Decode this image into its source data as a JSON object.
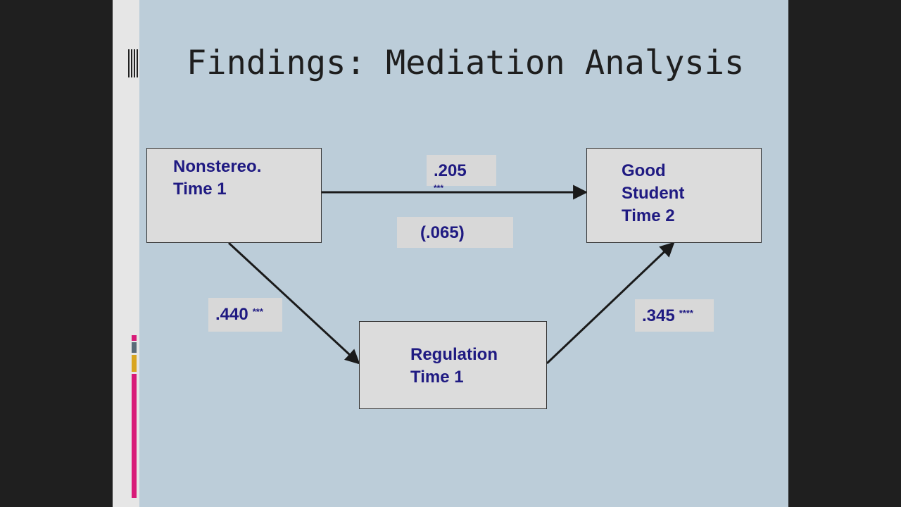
{
  "slide": {
    "title": "Findings: Mediation Analysis"
  },
  "diagram": {
    "nodes": {
      "predictor": {
        "line1": "Nonstereo.",
        "line2": "Time 1"
      },
      "outcome": {
        "line1": "Good",
        "line2": "Student",
        "line3": "Time 2"
      },
      "mediator": {
        "line1": "Regulation",
        "line2": "Time 1"
      }
    },
    "paths": {
      "direct": {
        "value": ".205",
        "sig": "***"
      },
      "direct_controlled": {
        "value": "(.065)"
      },
      "a_path": {
        "value": ".440",
        "sig": "***"
      },
      "b_path": {
        "value": ".345",
        "sig": "****"
      }
    }
  },
  "colors": {
    "slide_bg": "#bccdd9",
    "text_accent": "#1f1a82",
    "box_fill": "#dcdcdc",
    "accent_bars": [
      "#d81b78",
      "#d9a520",
      "#5a6a78"
    ]
  }
}
